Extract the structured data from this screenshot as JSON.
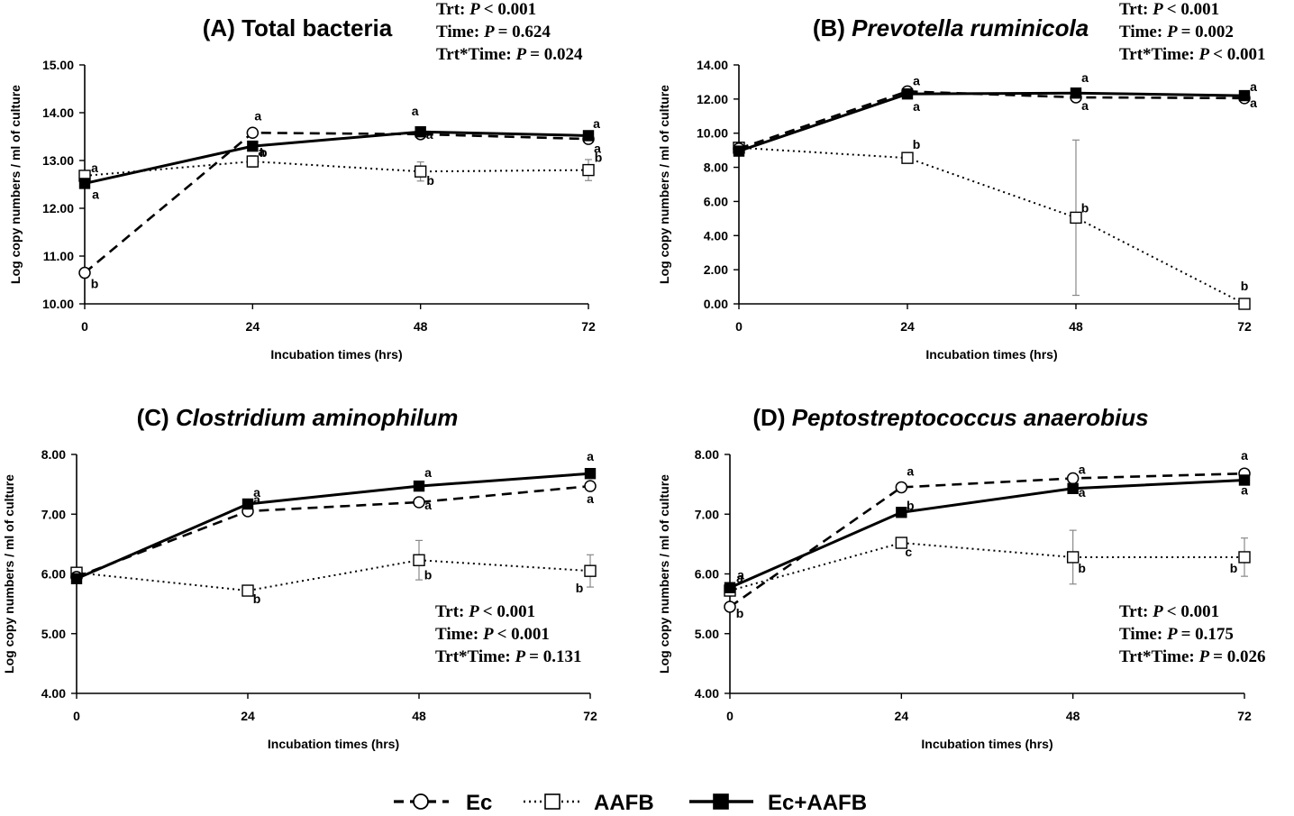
{
  "xlabel": "Incubation times (hrs)",
  "ylabel": "Log copy numbers / ml of culture",
  "legend": [
    {
      "name": "Ec",
      "style": "dashed",
      "marker": "open-circle"
    },
    {
      "name": "AAFB",
      "style": "dotted",
      "marker": "open-square"
    },
    {
      "name": "Ec+AAFB",
      "style": "solid",
      "marker": "filled-square"
    }
  ],
  "chart_data": [
    {
      "type": "line",
      "title_prefix": "(A) ",
      "title_name": "Total bacteria",
      "title_italic": false,
      "stats": [
        {
          "label": "Trt:",
          "p": "P",
          "value": "< 0.001"
        },
        {
          "label": "Time:",
          "p": "P",
          "value": "= 0.624"
        },
        {
          "label": "Trt*Time:",
          "p": "P",
          "value": "= 0.024"
        }
      ],
      "stats_position": "top-right",
      "x": [
        0,
        24,
        48,
        72
      ],
      "x_ticks": [
        "0",
        "24",
        "48",
        "72"
      ],
      "ylim": [
        10,
        15
      ],
      "y_ticks": [
        "10.00",
        "11.00",
        "12.00",
        "13.00",
        "14.00",
        "15.00"
      ],
      "series": [
        {
          "name": "Ec",
          "values": [
            10.65,
            13.58,
            13.55,
            13.45
          ],
          "err": [
            0,
            0,
            0,
            0
          ],
          "letters": [
            "b",
            "a",
            "a",
            "a"
          ]
        },
        {
          "name": "AAFB",
          "values": [
            12.68,
            12.98,
            12.77,
            12.8
          ],
          "err": [
            0,
            0.12,
            0.2,
            0.22
          ],
          "letters": [
            "a",
            "b",
            "b",
            "b"
          ]
        },
        {
          "name": "Ec+AAFB",
          "values": [
            12.52,
            13.3,
            13.6,
            13.52
          ],
          "err": [
            0,
            0,
            0,
            0
          ],
          "letters": [
            "a",
            "a",
            "a",
            "a"
          ]
        }
      ]
    },
    {
      "type": "line",
      "title_prefix": "(B) ",
      "title_name": "Prevotella ruminicola",
      "title_italic": true,
      "stats": [
        {
          "label": "Trt:",
          "p": "P",
          "value": "< 0.001"
        },
        {
          "label": "Time:",
          "p": "P",
          "value": "= 0.002"
        },
        {
          "label": "Trt*Time:",
          "p": "P",
          "value": "< 0.001"
        }
      ],
      "stats_position": "top-right",
      "x": [
        0,
        24,
        48,
        72
      ],
      "x_ticks": [
        "0",
        "24",
        "48",
        "72"
      ],
      "ylim": [
        0,
        14
      ],
      "y_ticks": [
        "0.00",
        "2.00",
        "4.00",
        "6.00",
        "8.00",
        "10.00",
        "12.00",
        "14.00"
      ],
      "series": [
        {
          "name": "Ec",
          "values": [
            9.1,
            12.45,
            12.1,
            12.05
          ],
          "err": [
            0,
            0,
            0,
            0
          ],
          "letters": [
            "",
            "a",
            "a",
            "a"
          ]
        },
        {
          "name": "AAFB",
          "values": [
            9.15,
            8.55,
            5.05,
            0.0
          ],
          "err": [
            0,
            0,
            4.55,
            0
          ],
          "letters": [
            "",
            "b",
            "b",
            "b"
          ]
        },
        {
          "name": "Ec+AAFB",
          "values": [
            8.95,
            12.3,
            12.35,
            12.2
          ],
          "err": [
            0,
            0,
            0,
            0
          ],
          "letters": [
            "",
            "a",
            "a",
            "a"
          ]
        }
      ]
    },
    {
      "type": "line",
      "title_prefix": "(C) ",
      "title_name": "Clostridium aminophilum",
      "title_italic": true,
      "stats": [
        {
          "label": "Trt:",
          "p": "P",
          "value": "< 0.001"
        },
        {
          "label": "Time:",
          "p": "P",
          "value": "< 0.001"
        },
        {
          "label": "Trt*Time:",
          "p": "P",
          "value": "= 0.131"
        }
      ],
      "stats_position": "bottom-right",
      "x": [
        0,
        24,
        48,
        72
      ],
      "x_ticks": [
        "0",
        "24",
        "48",
        "72"
      ],
      "ylim": [
        4,
        8
      ],
      "y_ticks": [
        "4.00",
        "5.00",
        "6.00",
        "7.00",
        "8.00"
      ],
      "series": [
        {
          "name": "Ec",
          "values": [
            5.95,
            7.05,
            7.2,
            7.47
          ],
          "err": [
            0,
            0,
            0,
            0
          ],
          "letters": [
            "",
            "a",
            "a",
            "a"
          ]
        },
        {
          "name": "AAFB",
          "values": [
            6.02,
            5.72,
            6.23,
            6.05
          ],
          "err": [
            0,
            0,
            0.33,
            0.27
          ],
          "letters": [
            "",
            "b",
            "b",
            "b"
          ]
        },
        {
          "name": "Ec+AAFB",
          "values": [
            5.92,
            7.17,
            7.47,
            7.68
          ],
          "err": [
            0,
            0,
            0,
            0
          ],
          "letters": [
            "",
            "a",
            "a",
            "a"
          ]
        }
      ]
    },
    {
      "type": "line",
      "title_prefix": "(D) ",
      "title_name": "Peptostreptococcus anaerobius",
      "title_italic": true,
      "stats": [
        {
          "label": "Trt:",
          "p": "P",
          "value": "< 0.001"
        },
        {
          "label": "Time:",
          "p": "P",
          "value": "= 0.175"
        },
        {
          "label": "Trt*Time:",
          "p": "P",
          "value": "= 0.026"
        }
      ],
      "stats_position": "bottom-right",
      "x": [
        0,
        24,
        48,
        72
      ],
      "x_ticks": [
        "0",
        "24",
        "48",
        "72"
      ],
      "ylim": [
        4,
        8
      ],
      "y_ticks": [
        "4.00",
        "5.00",
        "6.00",
        "7.00",
        "8.00"
      ],
      "series": [
        {
          "name": "Ec",
          "values": [
            5.45,
            7.45,
            7.6,
            7.68
          ],
          "err": [
            0,
            0,
            0,
            0
          ],
          "letters": [
            "b",
            "a",
            "a",
            "a"
          ]
        },
        {
          "name": "AAFB",
          "values": [
            5.72,
            6.52,
            6.28,
            6.28
          ],
          "err": [
            0,
            0,
            0.45,
            0.32
          ],
          "letters": [
            "a",
            "c",
            "b",
            "b"
          ]
        },
        {
          "name": "Ec+AAFB",
          "values": [
            5.77,
            7.03,
            7.43,
            7.57
          ],
          "err": [
            0,
            0,
            0,
            0
          ],
          "letters": [
            "a",
            "b",
            "a",
            "a"
          ]
        }
      ]
    }
  ]
}
